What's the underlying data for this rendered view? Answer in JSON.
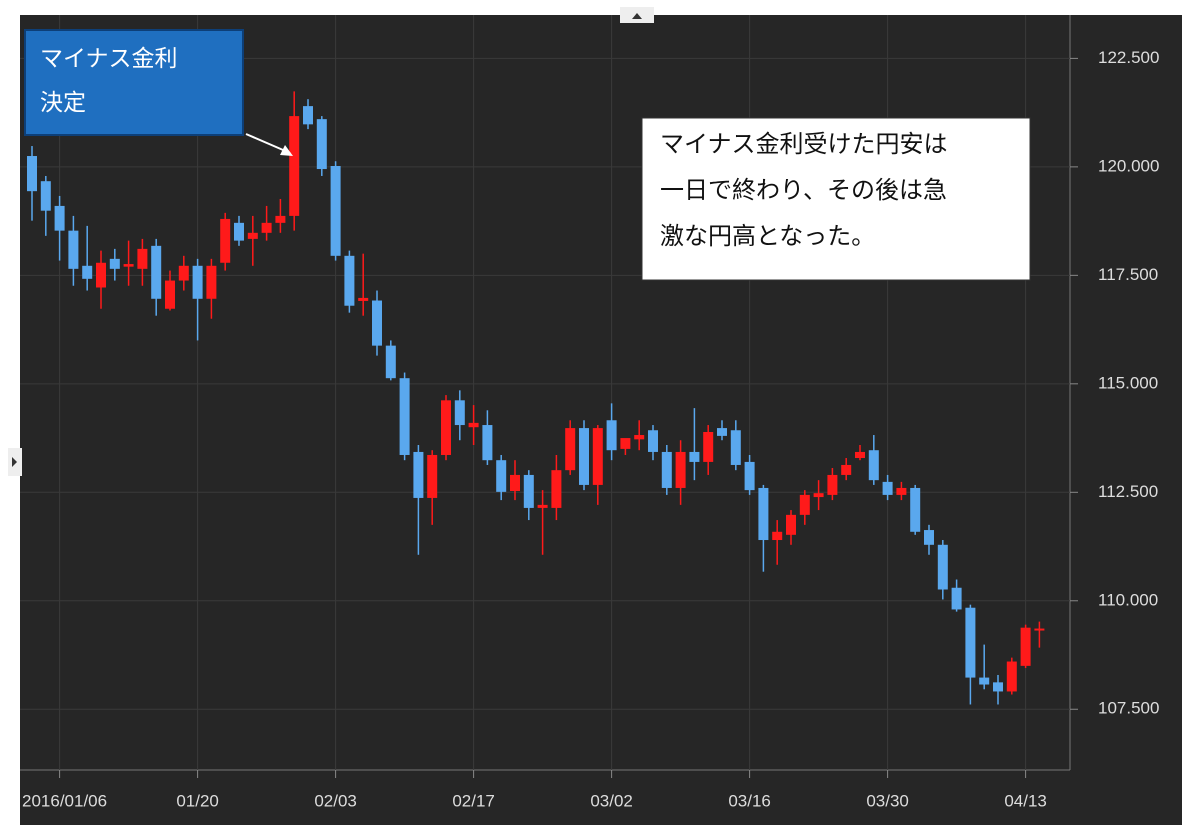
{
  "chart_data": {
    "type": "candlestick",
    "categories": [
      null,
      null,
      "2016/01/06",
      null,
      null,
      null,
      null,
      null,
      null,
      null,
      null,
      null,
      "01/20",
      null,
      null,
      null,
      null,
      null,
      null,
      null,
      null,
      null,
      "02/03",
      null,
      null,
      null,
      null,
      null,
      null,
      null,
      null,
      null,
      "02/17",
      null,
      null,
      null,
      null,
      null,
      null,
      null,
      null,
      null,
      "03/02",
      null,
      null,
      null,
      null,
      null,
      null,
      null,
      null,
      null,
      "03/16",
      null,
      null,
      null,
      null,
      null,
      null,
      null,
      null,
      null,
      "03/30",
      null,
      null,
      null,
      null,
      null,
      null,
      null,
      null,
      null,
      "04/13",
      null
    ],
    "open": [
      120.25,
      119.67,
      119.1,
      118.53,
      117.72,
      117.22,
      117.88,
      117.7,
      117.65,
      118.18,
      116.73,
      117.38,
      117.72,
      116.96,
      117.79,
      118.71,
      118.34,
      118.48,
      118.71,
      118.87,
      121.4,
      121.1,
      120.02,
      117.95,
      116.91,
      116.92,
      115.88,
      115.13,
      113.43,
      112.37,
      113.36,
      114.62,
      114.0,
      114.05,
      113.24,
      112.53,
      112.9,
      112.14,
      112.14,
      113.01,
      113.98,
      112.67,
      114.16,
      113.5,
      113.72,
      113.93,
      113.43,
      112.6,
      113.43,
      113.2,
      113.98,
      113.93,
      113.2,
      112.6,
      111.4,
      111.52,
      111.98,
      112.39,
      112.44,
      112.9,
      113.29,
      113.47,
      112.74,
      112.44,
      112.6,
      111.63,
      111.29,
      110.3,
      109.84,
      108.23,
      108.12,
      107.91,
      108.5,
      109.33
    ],
    "high": [
      120.48,
      119.79,
      119.33,
      118.87,
      118.64,
      118.07,
      118.11,
      118.3,
      118.34,
      118.34,
      117.61,
      117.95,
      117.88,
      117.88,
      118.94,
      118.87,
      118.87,
      119.1,
      119.26,
      121.74,
      121.56,
      121.17,
      120.13,
      118.07,
      118.0,
      117.15,
      116.0,
      115.26,
      113.59,
      113.47,
      114.74,
      114.85,
      114.51,
      114.39,
      113.36,
      113.24,
      113.01,
      112.55,
      113.36,
      114.16,
      114.16,
      114.05,
      114.55,
      113.7,
      114.16,
      114.05,
      113.59,
      113.7,
      114.44,
      114.05,
      114.16,
      114.16,
      113.36,
      112.67,
      111.86,
      112.09,
      112.55,
      112.78,
      113.06,
      113.29,
      113.59,
      113.82,
      112.9,
      112.74,
      112.67,
      111.75,
      111.4,
      110.49,
      109.91,
      108.99,
      108.29,
      108.69,
      109.45,
      109.52
    ],
    "low": [
      118.76,
      118.41,
      117.84,
      117.26,
      117.15,
      116.73,
      117.38,
      117.26,
      117.26,
      116.57,
      116.69,
      117.15,
      116.0,
      116.5,
      117.61,
      118.18,
      117.72,
      118.3,
      118.48,
      118.53,
      120.87,
      119.79,
      117.84,
      116.64,
      116.57,
      115.65,
      115.08,
      113.24,
      111.06,
      111.75,
      113.24,
      113.7,
      113.59,
      113.13,
      112.32,
      112.32,
      111.86,
      111.06,
      111.86,
      112.9,
      112.55,
      112.21,
      113.24,
      113.36,
      113.47,
      113.24,
      112.44,
      112.21,
      112.78,
      112.9,
      113.7,
      113.01,
      112.44,
      110.67,
      110.83,
      111.29,
      111.75,
      112.09,
      112.32,
      112.78,
      113.24,
      112.67,
      112.32,
      112.32,
      111.52,
      111.06,
      110.03,
      109.75,
      107.61,
      107.96,
      107.61,
      107.84,
      108.45,
      108.92
    ],
    "close": [
      119.44,
      118.99,
      118.53,
      117.65,
      117.42,
      117.79,
      117.65,
      117.76,
      118.11,
      116.96,
      117.38,
      117.72,
      116.96,
      117.72,
      118.8,
      118.3,
      118.48,
      118.71,
      118.87,
      121.17,
      120.98,
      119.95,
      117.95,
      116.8,
      116.98,
      115.88,
      115.13,
      113.36,
      112.37,
      113.36,
      114.62,
      114.05,
      114.1,
      113.24,
      112.51,
      112.9,
      112.14,
      112.21,
      113.01,
      113.98,
      112.67,
      113.98,
      113.47,
      113.75,
      113.82,
      113.43,
      112.6,
      113.43,
      113.2,
      113.89,
      113.8,
      113.13,
      112.55,
      111.4,
      111.59,
      111.98,
      112.44,
      112.48,
      112.9,
      113.13,
      113.43,
      112.78,
      112.44,
      112.6,
      111.59,
      111.29,
      110.26,
      109.8,
      108.23,
      108.07,
      107.91,
      108.6,
      109.38,
      109.36
    ],
    "up_color": "#ff1a1a",
    "down_color": "#5aa8ee",
    "ylim": [
      106.1,
      123.5
    ],
    "yticks": [
      {
        "value": 107.5,
        "label": "107.500"
      },
      {
        "value": 110,
        "label": "110.000"
      },
      {
        "value": 112.5,
        "label": "112.500"
      },
      {
        "value": 115,
        "label": "115.000"
      },
      {
        "value": 117.5,
        "label": "117.500"
      },
      {
        "value": 120,
        "label": "120.000"
      },
      {
        "value": 122.5,
        "label": "122.500"
      }
    ],
    "grid": true,
    "annotations": [
      {
        "lines": [
          "マイナス金利",
          "決定"
        ]
      },
      {
        "lines": [
          "マイナス金利受けた円安は",
          "一日で終わり、その後は急",
          "激な円高となった。"
        ]
      }
    ]
  }
}
